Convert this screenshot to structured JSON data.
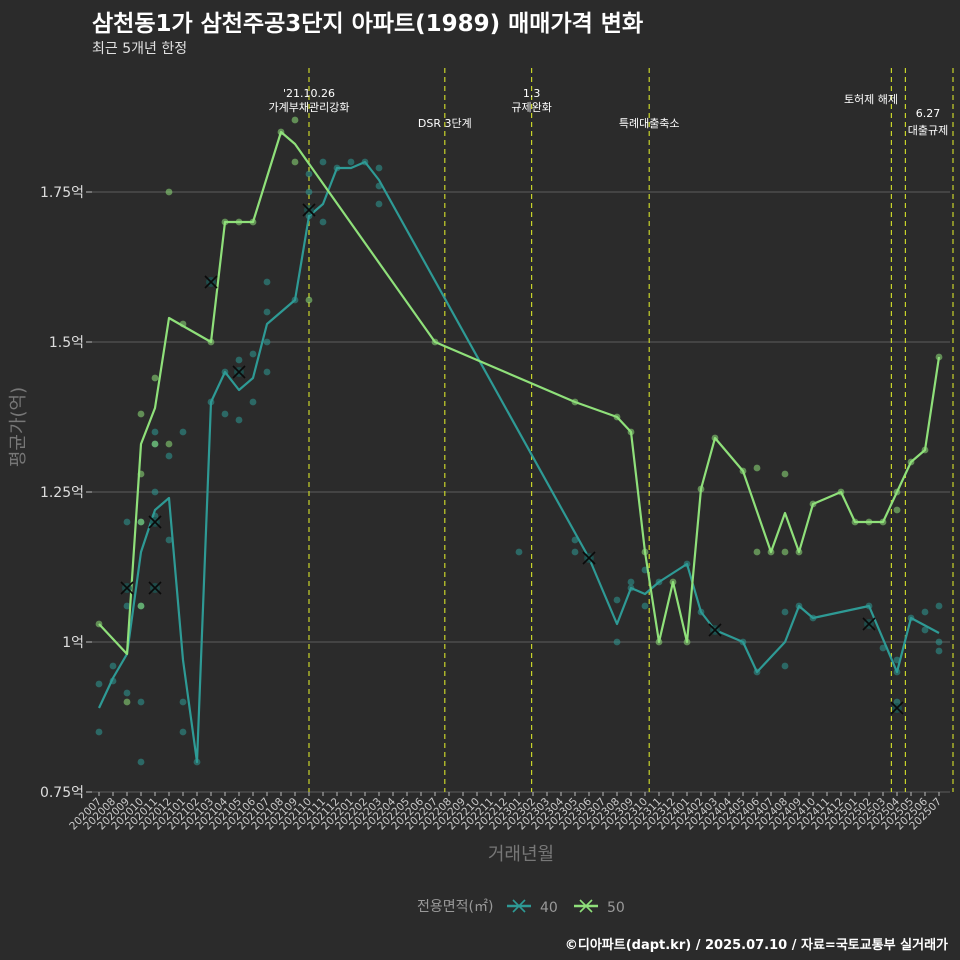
{
  "title": "삼천동1가 삼천주공3단지 아파트(1989) 매매가격 변화",
  "subtitle": "최근 5개년 한정",
  "caption": "©디아파트(dapt.kr) / 2025.07.10 / 자료=국토교통부 실거래가",
  "colors": {
    "s40": "#2e9a95",
    "s50": "#8fe07a",
    "vline": "#c8d42a",
    "grid": "#5c5c5c"
  },
  "chart_data": {
    "type": "line",
    "xlabel": "거래년월",
    "ylabel": "평균가(억)",
    "ylim": [
      0.75,
      1.86
    ],
    "y_ticks": [
      0.75,
      1.0,
      1.25,
      1.5,
      1.75
    ],
    "y_tick_labels": [
      "0.75억",
      "1억",
      "1.25억",
      "1.5억",
      "1.75억"
    ],
    "categories": [
      "202007",
      "202008",
      "202009",
      "202010",
      "202011",
      "202012",
      "202101",
      "202102",
      "202103",
      "202104",
      "202105",
      "202106",
      "202107",
      "202108",
      "202109",
      "202110",
      "202111",
      "202112",
      "202201",
      "202202",
      "202203",
      "202204",
      "202205",
      "202206",
      "202207",
      "202208",
      "202209",
      "202210",
      "202211",
      "202212",
      "202301",
      "202302",
      "202303",
      "202304",
      "202305",
      "202306",
      "202307",
      "202308",
      "202309",
      "202310",
      "202311",
      "202312",
      "202401",
      "202402",
      "202403",
      "202404",
      "202405",
      "202406",
      "202407",
      "202408",
      "202409",
      "202410",
      "202411",
      "202412",
      "202501",
      "202502",
      "202503",
      "202504",
      "202505",
      "202506",
      "202507"
    ],
    "legend_title": "전용면적(㎡)",
    "series": [
      {
        "name": "40",
        "line": [
          [
            0,
            0.89
          ],
          [
            1,
            0.94
          ],
          [
            2,
            0.98
          ],
          [
            3,
            1.15
          ],
          [
            4,
            1.22
          ],
          [
            5,
            1.24
          ],
          [
            6,
            0.97
          ],
          [
            7,
            0.8
          ],
          [
            8,
            1.4
          ],
          [
            9,
            1.45
          ],
          [
            10,
            1.42
          ],
          [
            11,
            1.44
          ],
          [
            12,
            1.53
          ],
          [
            13,
            1.55
          ],
          [
            14,
            1.57
          ],
          [
            15,
            1.71
          ],
          [
            16,
            1.73
          ],
          [
            17,
            1.79
          ],
          [
            18,
            1.79
          ],
          [
            19,
            1.8
          ],
          [
            20,
            1.77
          ],
          [
            35,
            1.14
          ],
          [
            37,
            1.03
          ],
          [
            38,
            1.09
          ],
          [
            39,
            1.08
          ],
          [
            40,
            1.1
          ],
          [
            42,
            1.13
          ],
          [
            43,
            1.05
          ],
          [
            44,
            1.02
          ],
          [
            46,
            1.0
          ],
          [
            47,
            0.95
          ],
          [
            49,
            1.0
          ],
          [
            50,
            1.06
          ],
          [
            51,
            1.04
          ],
          [
            55,
            1.06
          ],
          [
            57,
            0.95
          ],
          [
            58,
            1.04
          ],
          [
            60,
            1.015
          ]
        ],
        "points": [
          [
            0,
            0.93
          ],
          [
            0,
            0.85
          ],
          [
            1,
            0.96
          ],
          [
            1,
            0.935
          ],
          [
            2,
            1.2
          ],
          [
            2,
            1.06
          ],
          [
            2,
            0.915
          ],
          [
            3,
            1.2
          ],
          [
            3,
            1.06
          ],
          [
            3,
            0.9
          ],
          [
            3,
            0.8
          ],
          [
            4,
            1.35
          ],
          [
            4,
            1.33
          ],
          [
            4,
            1.25
          ],
          [
            4,
            1.21
          ],
          [
            4,
            1.2
          ],
          [
            5,
            1.31
          ],
          [
            5,
            1.17
          ],
          [
            6,
            1.35
          ],
          [
            6,
            0.9
          ],
          [
            6,
            0.85
          ],
          [
            7,
            0.8
          ],
          [
            8,
            1.4
          ],
          [
            9,
            1.45
          ],
          [
            9,
            1.38
          ],
          [
            10,
            1.47
          ],
          [
            10,
            1.37
          ],
          [
            11,
            1.48
          ],
          [
            11,
            1.4
          ],
          [
            12,
            1.6
          ],
          [
            12,
            1.55
          ],
          [
            12,
            1.5
          ],
          [
            12,
            1.45
          ],
          [
            14,
            1.57
          ],
          [
            15,
            1.78
          ],
          [
            15,
            1.75
          ],
          [
            15,
            1.71
          ],
          [
            16,
            1.8
          ],
          [
            16,
            1.7
          ],
          [
            17,
            1.79
          ],
          [
            18,
            1.8
          ],
          [
            19,
            1.8
          ],
          [
            20,
            1.79
          ],
          [
            20,
            1.76
          ],
          [
            20,
            1.73
          ],
          [
            30,
            1.15
          ],
          [
            34,
            1.17
          ],
          [
            34,
            1.15
          ],
          [
            35,
            1.14
          ],
          [
            37,
            1.07
          ],
          [
            37,
            1.0
          ],
          [
            38,
            1.1
          ],
          [
            38,
            1.09
          ],
          [
            39,
            1.12
          ],
          [
            39,
            1.06
          ],
          [
            40,
            1.1
          ],
          [
            42,
            1.13
          ],
          [
            43,
            1.05
          ],
          [
            44,
            1.02
          ],
          [
            46,
            1.0
          ],
          [
            47,
            0.95
          ],
          [
            49,
            1.05
          ],
          [
            49,
            0.96
          ],
          [
            50,
            1.06
          ],
          [
            51,
            1.04
          ],
          [
            55,
            1.06
          ],
          [
            56,
            0.99
          ],
          [
            57,
            0.97
          ],
          [
            57,
            0.95
          ],
          [
            57,
            0.9
          ],
          [
            58,
            1.04
          ],
          [
            59,
            1.05
          ],
          [
            59,
            1.02
          ],
          [
            60,
            1.06
          ],
          [
            60,
            1.0
          ],
          [
            60,
            0.985
          ]
        ],
        "crosses": [
          [
            2,
            1.09
          ],
          [
            4,
            1.09
          ],
          [
            4,
            1.2
          ],
          [
            10,
            1.45
          ],
          [
            35,
            1.14
          ],
          [
            44,
            1.02
          ],
          [
            55,
            1.03
          ],
          [
            57,
            0.89
          ]
        ]
      },
      {
        "name": "50",
        "line": [
          [
            0,
            1.03
          ],
          [
            2,
            0.98
          ],
          [
            3,
            1.33
          ],
          [
            4,
            1.39
          ],
          [
            5,
            1.54
          ],
          [
            8,
            1.5
          ],
          [
            9,
            1.7
          ],
          [
            10,
            1.7
          ],
          [
            11,
            1.7
          ],
          [
            13,
            1.85
          ],
          [
            14,
            1.83
          ],
          [
            24,
            1.5
          ],
          [
            34,
            1.4
          ],
          [
            37,
            1.375
          ],
          [
            38,
            1.35
          ],
          [
            39,
            1.15
          ],
          [
            40,
            1.0
          ],
          [
            41,
            1.1
          ],
          [
            42,
            1.0
          ],
          [
            43,
            1.255
          ],
          [
            44,
            1.34
          ],
          [
            46,
            1.285
          ],
          [
            48,
            1.15
          ],
          [
            49,
            1.215
          ],
          [
            50,
            1.15
          ],
          [
            51,
            1.23
          ],
          [
            53,
            1.25
          ],
          [
            54,
            1.2
          ],
          [
            55,
            1.2
          ],
          [
            56,
            1.2
          ],
          [
            57,
            1.25
          ],
          [
            58,
            1.3
          ],
          [
            59,
            1.32
          ],
          [
            60,
            1.475
          ]
        ],
        "points": [
          [
            0,
            1.03
          ],
          [
            2,
            0.9
          ],
          [
            3,
            1.38
          ],
          [
            3,
            1.28
          ],
          [
            3,
            1.2
          ],
          [
            3,
            1.06
          ],
          [
            4,
            1.44
          ],
          [
            4,
            1.33
          ],
          [
            5,
            1.75
          ],
          [
            5,
            1.33
          ],
          [
            6,
            1.53
          ],
          [
            8,
            1.5
          ],
          [
            9,
            1.7
          ],
          [
            10,
            1.7
          ],
          [
            11,
            1.7
          ],
          [
            13,
            1.85
          ],
          [
            14,
            1.87
          ],
          [
            14,
            1.8
          ],
          [
            15,
            1.57
          ],
          [
            24,
            1.5
          ],
          [
            34,
            1.4
          ],
          [
            37,
            1.375
          ],
          [
            38,
            1.35
          ],
          [
            39,
            1.15
          ],
          [
            40,
            1.0
          ],
          [
            41,
            1.1
          ],
          [
            42,
            1.0
          ],
          [
            43,
            1.255
          ],
          [
            44,
            1.34
          ],
          [
            46,
            1.285
          ],
          [
            47,
            1.29
          ],
          [
            47,
            1.15
          ],
          [
            48,
            1.15
          ],
          [
            49,
            1.28
          ],
          [
            49,
            1.15
          ],
          [
            50,
            1.15
          ],
          [
            51,
            1.23
          ],
          [
            53,
            1.25
          ],
          [
            54,
            1.2
          ],
          [
            55,
            1.2
          ],
          [
            56,
            1.2
          ],
          [
            57,
            1.25
          ],
          [
            57,
            1.22
          ],
          [
            58,
            1.3
          ],
          [
            59,
            1.32
          ],
          [
            60,
            1.475
          ]
        ],
        "crosses": [
          [
            8,
            1.6
          ],
          [
            15,
            1.72
          ]
        ]
      }
    ],
    "annotations": [
      {
        "x": 15,
        "lines": [
          "'21.10.26",
          "가계부채관리강화"
        ],
        "level": "top"
      },
      {
        "x": 24.7,
        "lines": [
          "DSR 3단계"
        ],
        "level": "low"
      },
      {
        "x": 30.9,
        "lines": [
          "1.3",
          "규제완화"
        ],
        "level": "top"
      },
      {
        "x": 39.3,
        "lines": [
          "특례대출축소"
        ],
        "level": "low"
      },
      {
        "x": 56.6,
        "lines": [
          "토허제 해제"
        ],
        "level": "mid"
      },
      {
        "x": 57.6,
        "lines": [],
        "level": "none"
      },
      {
        "x": 61.0,
        "lines": [
          "6.27",
          "대출규제"
        ],
        "level": "right"
      }
    ]
  }
}
